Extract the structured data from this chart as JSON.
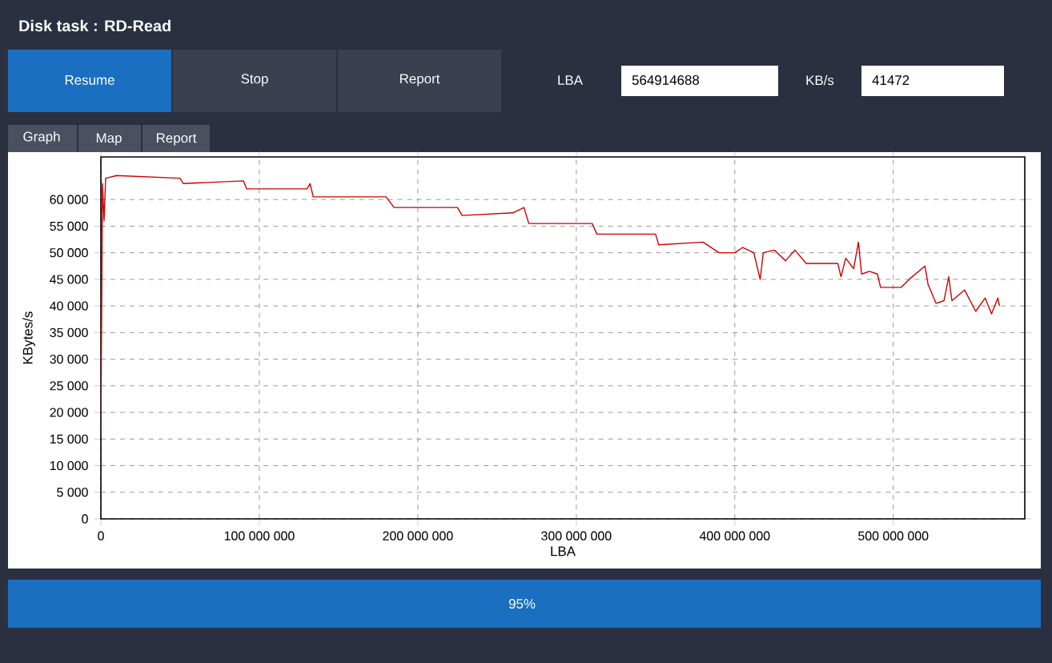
{
  "chart_data": {
    "type": "line",
    "title": "Disk task : RD-Read",
    "xlabel": "LBA",
    "ylabel": "KBytes/s",
    "annotations": [
      "Resume",
      "Stop",
      "Report",
      "LBA",
      "564914688",
      "KB/s",
      "41472",
      "Graph",
      "Map",
      "Report",
      "95%"
    ],
    "xlim": [
      0,
      583000000
    ],
    "ylim": [
      0,
      68000
    ],
    "xticks": [
      {
        "value": 0,
        "label": "0"
      },
      {
        "value": 100000000,
        "label": "100 000 000"
      },
      {
        "value": 200000000,
        "label": "200 000 000"
      },
      {
        "value": 300000000,
        "label": "300 000 000"
      },
      {
        "value": 400000000,
        "label": "400 000 000"
      },
      {
        "value": 500000000,
        "label": "500 000 000"
      }
    ],
    "yticks": [
      {
        "value": 0,
        "label": "0"
      },
      {
        "value": 5000,
        "label": "5 000"
      },
      {
        "value": 10000,
        "label": "10 000"
      },
      {
        "value": 15000,
        "label": "15 000"
      },
      {
        "value": 20000,
        "label": "20 000"
      },
      {
        "value": 25000,
        "label": "25 000"
      },
      {
        "value": 30000,
        "label": "30 000"
      },
      {
        "value": 35000,
        "label": "35 000"
      },
      {
        "value": 40000,
        "label": "40 000"
      },
      {
        "value": 45000,
        "label": "45 000"
      },
      {
        "value": 50000,
        "label": "50 000"
      },
      {
        "value": 55000,
        "label": "55 000"
      },
      {
        "value": 60000,
        "label": "60 000"
      }
    ],
    "grid": true,
    "marker": "none",
    "line_style": "solid",
    "series": [
      {
        "color": "#cc0000",
        "x": [
          0,
          1000000,
          2000000,
          3000000,
          10000000,
          50000000,
          52000000,
          90000000,
          92000000,
          130000000,
          132000000,
          134000000,
          180000000,
          185000000,
          225000000,
          228000000,
          260000000,
          267000000,
          270000000,
          310000000,
          313000000,
          350000000,
          352000000,
          380000000,
          390000000,
          400000000,
          405000000,
          412000000,
          416000000,
          418000000,
          425000000,
          432000000,
          438000000,
          445000000,
          465000000,
          467000000,
          470000000,
          475000000,
          478000000,
          480000000,
          485000000,
          490000000,
          492000000,
          505000000,
          510000000,
          520000000,
          522000000,
          527000000,
          532000000,
          535000000,
          537000000,
          545000000,
          552000000,
          558000000,
          562000000,
          566000000,
          567000000
        ],
        "values": [
          16000,
          63000,
          56000,
          64000,
          64500,
          64000,
          63000,
          63500,
          62000,
          62000,
          63000,
          60500,
          60500,
          58500,
          58500,
          57000,
          57500,
          58500,
          55500,
          55500,
          53500,
          53500,
          51500,
          52000,
          50000,
          50000,
          51000,
          50000,
          45000,
          50000,
          50500,
          48500,
          50500,
          48000,
          48000,
          45500,
          49000,
          47000,
          52000,
          46000,
          46500,
          46000,
          43500,
          43500,
          45000,
          47500,
          44000,
          40500,
          41000,
          45500,
          41000,
          43000,
          39000,
          41500,
          38500,
          41500,
          40000
        ]
      }
    ]
  }
}
